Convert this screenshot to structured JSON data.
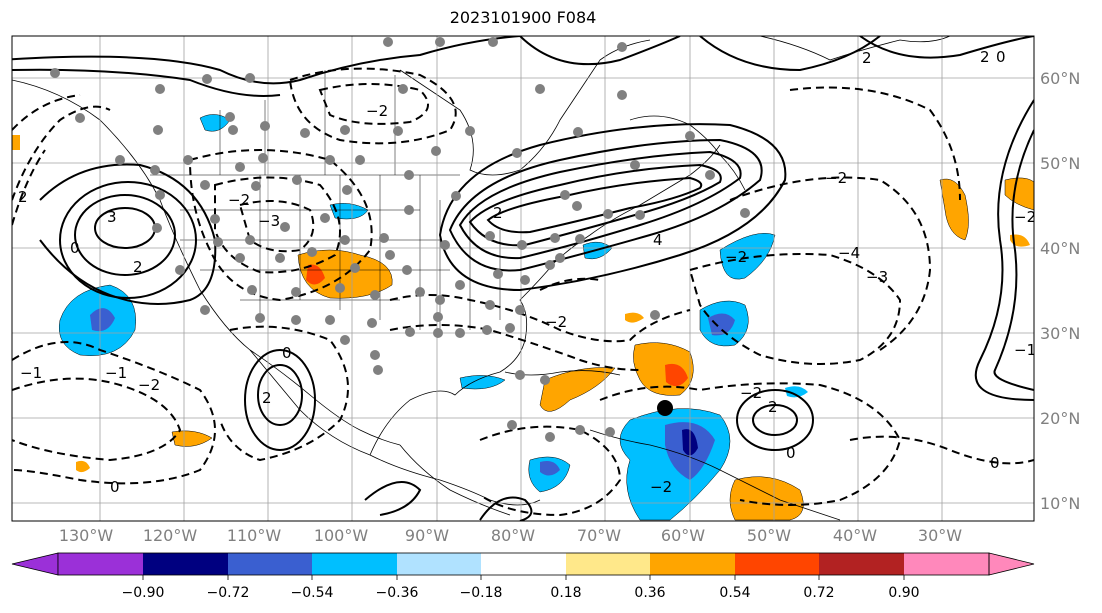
{
  "title": "2023101900 F084",
  "lon_labels": [
    "130°W",
    "120°W",
    "110°W",
    "100°W",
    "90°W",
    "80°W",
    "70°W",
    "60°W",
    "50°W",
    "40°W",
    "30°W"
  ],
  "lat_labels": [
    "60°N",
    "50°N",
    "40°N",
    "30°N",
    "20°N",
    "10°N"
  ],
  "colorbar": {
    "ticks": [
      "−0.90",
      "−0.72",
      "−0.54",
      "−0.36",
      "−0.18",
      "0.18",
      "0.36",
      "0.54",
      "0.72",
      "0.90"
    ],
    "colors": [
      "#9b30d8",
      "#000080",
      "#3a5fd0",
      "#00bfff",
      "#b0e2ff",
      "#ffffff",
      "#ffe88a",
      "#ffa500",
      "#ff4500",
      "#b22222",
      "#ff88bb"
    ]
  },
  "contour_labels": [
    "3",
    "2",
    "2",
    "0",
    "−2",
    "−3",
    "−2",
    "2",
    "4",
    "2",
    "−2",
    "−4",
    "−3",
    "−2",
    "0",
    "2",
    "−1",
    "−2",
    "−1",
    "−1",
    "−2",
    "0",
    "0",
    "−2",
    "−2",
    "2",
    "0",
    "−2",
    "2",
    "0"
  ],
  "legend": {
    "gray_dots": "stations",
    "black_dot": "storm center"
  }
}
